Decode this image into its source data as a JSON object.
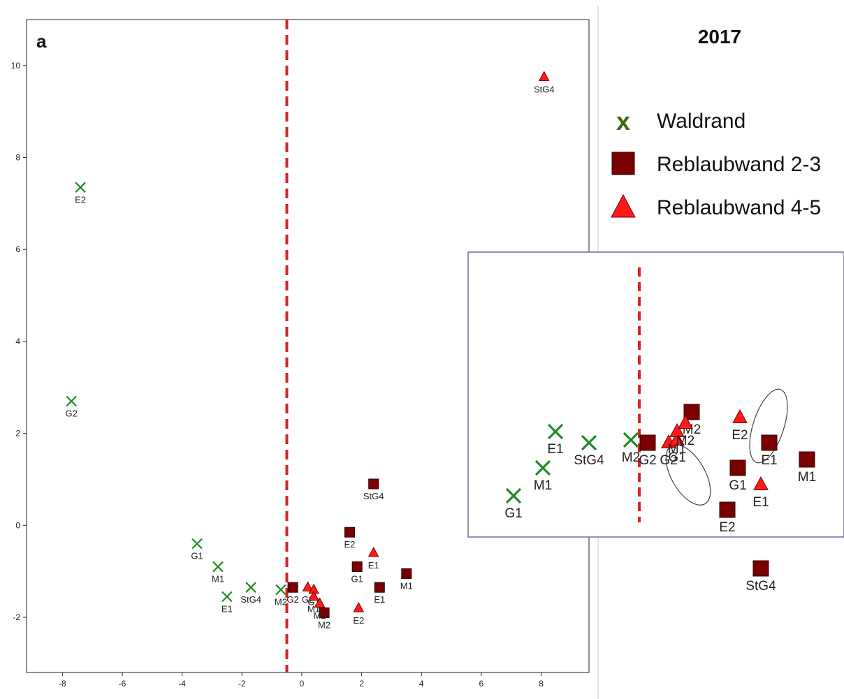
{
  "chart_data": {
    "type": "scatter",
    "panel_letter": "a",
    "year_label": "2017",
    "xlim": [
      -9.2,
      9.6
    ],
    "ylim": [
      -3.2,
      11.0
    ],
    "x_ticks": [
      -8,
      -6,
      -4,
      -2,
      0,
      2,
      4,
      6,
      8
    ],
    "y_ticks": [
      -2,
      0,
      2,
      4,
      6,
      8,
      10
    ],
    "divider_x": -0.5,
    "colors": {
      "waldrand": "#1e8a1e",
      "square_fill": "#7a0000",
      "triangle_fill": "#ff1a1a",
      "divider": "#dd2222",
      "inset_border": "#6a6aaa"
    },
    "legend": [
      {
        "label": "Waldrand",
        "marker": "x",
        "color": "#3a6a10"
      },
      {
        "label": "Reblaubwand 2-3",
        "marker": "square",
        "color": "#7a0000"
      },
      {
        "label": "Reblaubwand 4-5",
        "marker": "triangle",
        "color": "#ff1a1a"
      }
    ],
    "series": [
      {
        "name": "Waldrand",
        "marker": "x",
        "points": [
          {
            "label": "E2",
            "x": -7.4,
            "y": 7.35
          },
          {
            "label": "G2",
            "x": -7.7,
            "y": 2.7
          },
          {
            "label": "G1",
            "x": -3.5,
            "y": -0.4
          },
          {
            "label": "M1",
            "x": -2.8,
            "y": -0.9
          },
          {
            "label": "E1",
            "x": -2.5,
            "y": -1.55
          },
          {
            "label": "StG4",
            "x": -1.7,
            "y": -1.35
          },
          {
            "label": "M2",
            "x": -0.7,
            "y": -1.4
          }
        ]
      },
      {
        "name": "Reblaubwand 2-3",
        "marker": "square",
        "points": [
          {
            "label": "StG4",
            "x": 2.4,
            "y": 0.9
          },
          {
            "label": "E2",
            "x": 1.6,
            "y": -0.15
          },
          {
            "label": "G1",
            "x": 1.85,
            "y": -0.9
          },
          {
            "label": "M1",
            "x": 3.5,
            "y": -1.05
          },
          {
            "label": "E1",
            "x": 2.6,
            "y": -1.35
          },
          {
            "label": "G2",
            "x": -0.3,
            "y": -1.35
          },
          {
            "label": "M2",
            "x": 0.75,
            "y": -1.9
          }
        ]
      },
      {
        "name": "Reblaubwand 4-5",
        "marker": "triangle",
        "points": [
          {
            "label": "StG4",
            "x": 8.1,
            "y": 9.75
          },
          {
            "label": "E1",
            "x": 2.4,
            "y": -0.6
          },
          {
            "label": "E2",
            "x": 1.9,
            "y": -1.8
          },
          {
            "label": "G2",
            "x": 0.2,
            "y": -1.35
          },
          {
            "label": "G1",
            "x": 0.4,
            "y": -1.4
          },
          {
            "label": "M1",
            "x": 0.4,
            "y": -1.55
          },
          {
            "label": "M2",
            "x": 0.6,
            "y": -1.7
          }
        ]
      }
    ],
    "inset": {
      "title": "",
      "points": [
        {
          "series": "Waldrand",
          "label": "G1",
          "x": -3.5,
          "y": -0.4
        },
        {
          "series": "Waldrand",
          "label": "M1",
          "x": -2.8,
          "y": -0.9
        },
        {
          "series": "Waldrand",
          "label": "E1",
          "x": -2.5,
          "y": -1.55
        },
        {
          "series": "Waldrand",
          "label": "StG4",
          "x": -1.7,
          "y": -1.35
        },
        {
          "series": "Waldrand",
          "label": "M2",
          "x": -0.7,
          "y": -1.4
        },
        {
          "series": "Reblaubwand 2-3",
          "label": "StG4",
          "x": 2.4,
          "y": 0.9
        },
        {
          "series": "Reblaubwand 2-3",
          "label": "E2",
          "x": 1.6,
          "y": -0.15
        },
        {
          "series": "Reblaubwand 2-3",
          "label": "G1",
          "x": 1.85,
          "y": -0.9
        },
        {
          "series": "Reblaubwand 2-3",
          "label": "M1",
          "x": 3.5,
          "y": -1.05
        },
        {
          "series": "Reblaubwand 2-3",
          "label": "E1",
          "x": 2.6,
          "y": -1.35
        },
        {
          "series": "Reblaubwand 2-3",
          "label": "G2",
          "x": -0.3,
          "y": -1.35
        },
        {
          "series": "Reblaubwand 2-3",
          "label": "M2",
          "x": 0.75,
          "y": -1.9
        },
        {
          "series": "Reblaubwand 4-5",
          "label": "E1",
          "x": 2.4,
          "y": -0.6
        },
        {
          "series": "Reblaubwand 4-5",
          "label": "E2",
          "x": 1.9,
          "y": -1.8
        },
        {
          "series": "Reblaubwand 4-5",
          "label": "G2",
          "x": 0.2,
          "y": -1.35
        },
        {
          "series": "Reblaubwand 4-5",
          "label": "G1",
          "x": 0.4,
          "y": -1.4
        },
        {
          "series": "Reblaubwand 4-5",
          "label": "M1",
          "x": 0.4,
          "y": -1.55
        },
        {
          "series": "Reblaubwand 4-5",
          "label": "M2",
          "x": 0.6,
          "y": -1.7
        }
      ]
    }
  }
}
